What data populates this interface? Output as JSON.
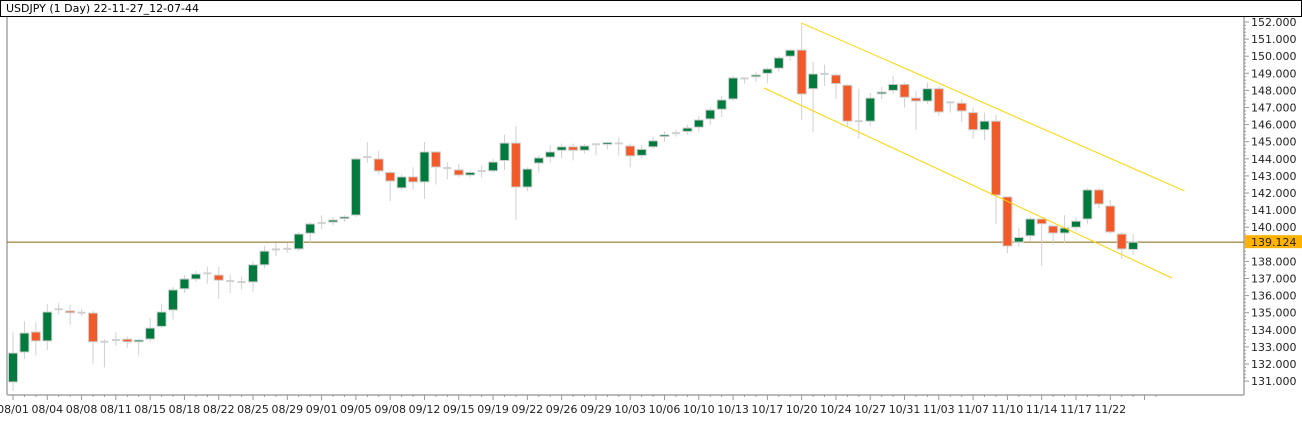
{
  "header": {
    "title": "USDJPY (1 Day) 22-11-27_12-07-44"
  },
  "chart_data": {
    "type": "candlestick",
    "title": "USDJPY (1 Day) 22-11-27_12-07-44",
    "symbol": "USDJPY",
    "timeframe": "1 Day",
    "ylim": [
      130.4,
      152.35
    ],
    "y_ticks": [
      "152.000",
      "151.000",
      "150.000",
      "149.000",
      "148.000",
      "147.000",
      "146.000",
      "145.000",
      "144.000",
      "143.000",
      "142.000",
      "141.000",
      "140.000",
      "138.000",
      "137.000",
      "136.000",
      "135.000",
      "134.000",
      "133.000",
      "132.000",
      "131.000"
    ],
    "x_tick_labels": [
      "08/01",
      "08/04",
      "08/08",
      "08/11",
      "08/15",
      "08/18",
      "08/22",
      "08/25",
      "08/29",
      "09/01",
      "09/05",
      "09/08",
      "09/12",
      "09/15",
      "09/19",
      "09/22",
      "09/26",
      "09/29",
      "10/03",
      "10/06",
      "10/10",
      "10/13",
      "10/17",
      "10/20",
      "10/24",
      "10/27",
      "10/31",
      "11/03",
      "11/07",
      "11/10",
      "11/14",
      "11/17",
      "11/22"
    ],
    "x_tick_every_bars": 3,
    "current_price": {
      "value": 139.124,
      "label": "139.124",
      "line_color": "#8a6410",
      "label_bg": "#ffb300"
    },
    "colors": {
      "up": "#007a3d",
      "down": "#f25a29",
      "wick": "#d0d0d0",
      "doji": "#d0d0d0",
      "trendline": "#ffd400"
    },
    "ohlc": [
      [
        130.95,
        133.87,
        130.42,
        132.64
      ],
      [
        132.7,
        134.5,
        132.3,
        133.81
      ],
      [
        133.87,
        134.45,
        132.5,
        133.35
      ],
      [
        133.35,
        135.5,
        132.8,
        135.04
      ],
      [
        135.2,
        135.55,
        134.9,
        135.2
      ],
      [
        135.1,
        135.45,
        134.3,
        135.0
      ],
      [
        135.0,
        135.2,
        134.8,
        135.0
      ],
      [
        134.98,
        135.1,
        132.0,
        133.3
      ],
      [
        133.3,
        133.45,
        131.8,
        133.3
      ],
      [
        133.4,
        133.85,
        133.05,
        133.4
      ],
      [
        133.45,
        133.6,
        132.95,
        133.3
      ],
      [
        133.3,
        133.45,
        132.5,
        133.4
      ],
      [
        133.46,
        134.7,
        133.3,
        134.1
      ],
      [
        134.2,
        135.5,
        134.1,
        135.04
      ],
      [
        135.16,
        136.5,
        134.6,
        136.33
      ],
      [
        136.4,
        137.2,
        136.15,
        136.97
      ],
      [
        136.97,
        137.45,
        136.8,
        137.26
      ],
      [
        137.3,
        137.7,
        136.7,
        137.3
      ],
      [
        137.2,
        137.67,
        135.8,
        136.9
      ],
      [
        136.85,
        137.25,
        136.15,
        136.85
      ],
      [
        136.8,
        137.1,
        136.35,
        136.8
      ],
      [
        136.8,
        138.0,
        136.2,
        137.8
      ],
      [
        137.8,
        138.9,
        137.6,
        138.6
      ],
      [
        138.7,
        139.1,
        138.3,
        138.7
      ],
      [
        138.73,
        139.1,
        138.5,
        138.73
      ],
      [
        138.73,
        139.7,
        138.6,
        139.6
      ],
      [
        139.65,
        140.3,
        139.1,
        140.19
      ],
      [
        140.25,
        140.7,
        139.9,
        140.25
      ],
      [
        140.3,
        140.6,
        140.1,
        140.42
      ],
      [
        140.5,
        140.7,
        140.3,
        140.6
      ],
      [
        140.71,
        144.1,
        140.6,
        143.99
      ],
      [
        144.1,
        144.98,
        143.75,
        144.1
      ],
      [
        143.99,
        144.45,
        143.1,
        143.29
      ],
      [
        143.2,
        143.3,
        141.53,
        142.7
      ],
      [
        142.3,
        143.1,
        142.18,
        142.94
      ],
      [
        142.94,
        143.5,
        142.2,
        142.65
      ],
      [
        142.65,
        144.98,
        141.65,
        144.4
      ],
      [
        144.4,
        144.4,
        142.5,
        143.52
      ],
      [
        143.46,
        143.8,
        142.8,
        143.46
      ],
      [
        143.35,
        143.7,
        142.9,
        143.05
      ],
      [
        143.05,
        143.3,
        142.9,
        143.2
      ],
      [
        143.28,
        143.6,
        142.9,
        143.28
      ],
      [
        143.3,
        144.0,
        143.2,
        143.81
      ],
      [
        143.9,
        145.4,
        143.35,
        144.92
      ],
      [
        144.92,
        145.9,
        140.42,
        142.35
      ],
      [
        142.35,
        143.5,
        142.1,
        143.4
      ],
      [
        143.75,
        144.2,
        143.2,
        144.05
      ],
      [
        144.1,
        144.8,
        143.8,
        144.4
      ],
      [
        144.5,
        144.9,
        144.05,
        144.7
      ],
      [
        144.7,
        144.9,
        143.9,
        144.5
      ],
      [
        144.5,
        144.85,
        144.3,
        144.75
      ],
      [
        144.85,
        144.9,
        144.2,
        144.85
      ],
      [
        144.85,
        145.0,
        144.55,
        144.95
      ],
      [
        144.9,
        145.25,
        144.2,
        144.9
      ],
      [
        144.75,
        144.9,
        143.5,
        144.17
      ],
      [
        144.2,
        144.8,
        144.05,
        144.55
      ],
      [
        144.7,
        145.3,
        144.6,
        145.05
      ],
      [
        145.3,
        145.6,
        145.0,
        145.4
      ],
      [
        145.5,
        145.7,
        145.3,
        145.5
      ],
      [
        145.6,
        146.0,
        145.4,
        145.8
      ],
      [
        145.85,
        146.5,
        145.6,
        146.27
      ],
      [
        146.33,
        147.0,
        146.0,
        146.85
      ],
      [
        146.9,
        147.67,
        146.44,
        147.44
      ],
      [
        147.5,
        148.85,
        147.4,
        148.73
      ],
      [
        148.7,
        148.75,
        148.4,
        148.7
      ],
      [
        148.8,
        149.1,
        148.5,
        148.9
      ],
      [
        149.0,
        149.35,
        148.43,
        149.25
      ],
      [
        149.3,
        150.0,
        149.1,
        149.9
      ],
      [
        150.0,
        150.4,
        149.75,
        150.35
      ],
      [
        150.36,
        151.94,
        146.27,
        147.79
      ],
      [
        148.1,
        149.66,
        145.57,
        148.96
      ],
      [
        148.96,
        149.5,
        148.25,
        148.96
      ],
      [
        148.9,
        149.0,
        147.5,
        148.4
      ],
      [
        148.3,
        148.35,
        145.9,
        146.2
      ],
      [
        146.2,
        148.1,
        145.16,
        146.2
      ],
      [
        146.2,
        147.85,
        145.9,
        147.55
      ],
      [
        147.8,
        148.2,
        147.5,
        147.9
      ],
      [
        148.0,
        148.85,
        147.8,
        148.35
      ],
      [
        148.35,
        148.45,
        147.0,
        147.6
      ],
      [
        147.55,
        148.0,
        145.7,
        147.38
      ],
      [
        147.38,
        148.45,
        147.2,
        148.1
      ],
      [
        148.1,
        148.2,
        146.5,
        146.74
      ],
      [
        147.3,
        147.35,
        146.7,
        147.3
      ],
      [
        147.25,
        147.5,
        146.15,
        146.8
      ],
      [
        146.7,
        147.0,
        145.16,
        145.7
      ],
      [
        145.7,
        146.7,
        145.1,
        146.2
      ],
      [
        146.2,
        146.56,
        140.19,
        141.88
      ],
      [
        141.77,
        141.8,
        138.49,
        138.9
      ],
      [
        139.13,
        139.95,
        138.85,
        139.4
      ],
      [
        139.5,
        140.6,
        139.2,
        140.48
      ],
      [
        140.48,
        140.5,
        137.73,
        140.2
      ],
      [
        140.07,
        140.1,
        139.0,
        139.66
      ],
      [
        139.66,
        140.7,
        139.1,
        139.95
      ],
      [
        140.0,
        140.6,
        139.8,
        140.35
      ],
      [
        140.48,
        142.3,
        140.2,
        142.18
      ],
      [
        142.18,
        142.3,
        141.1,
        141.36
      ],
      [
        141.24,
        141.6,
        139.6,
        139.72
      ],
      [
        139.6,
        139.7,
        138.14,
        138.73
      ],
      [
        138.7,
        139.6,
        138.4,
        139.124
      ]
    ],
    "trendlines": [
      {
        "name": "channel-upper",
        "from": {
          "bar": 69,
          "price": 151.94
        },
        "to": {
          "bar": 102.5,
          "price": 142.12
        }
      },
      {
        "name": "channel-lower",
        "from": {
          "bar": 65.7,
          "price": 148.14
        },
        "to": {
          "bar": 101.4,
          "price": 137.03
        }
      }
    ]
  }
}
